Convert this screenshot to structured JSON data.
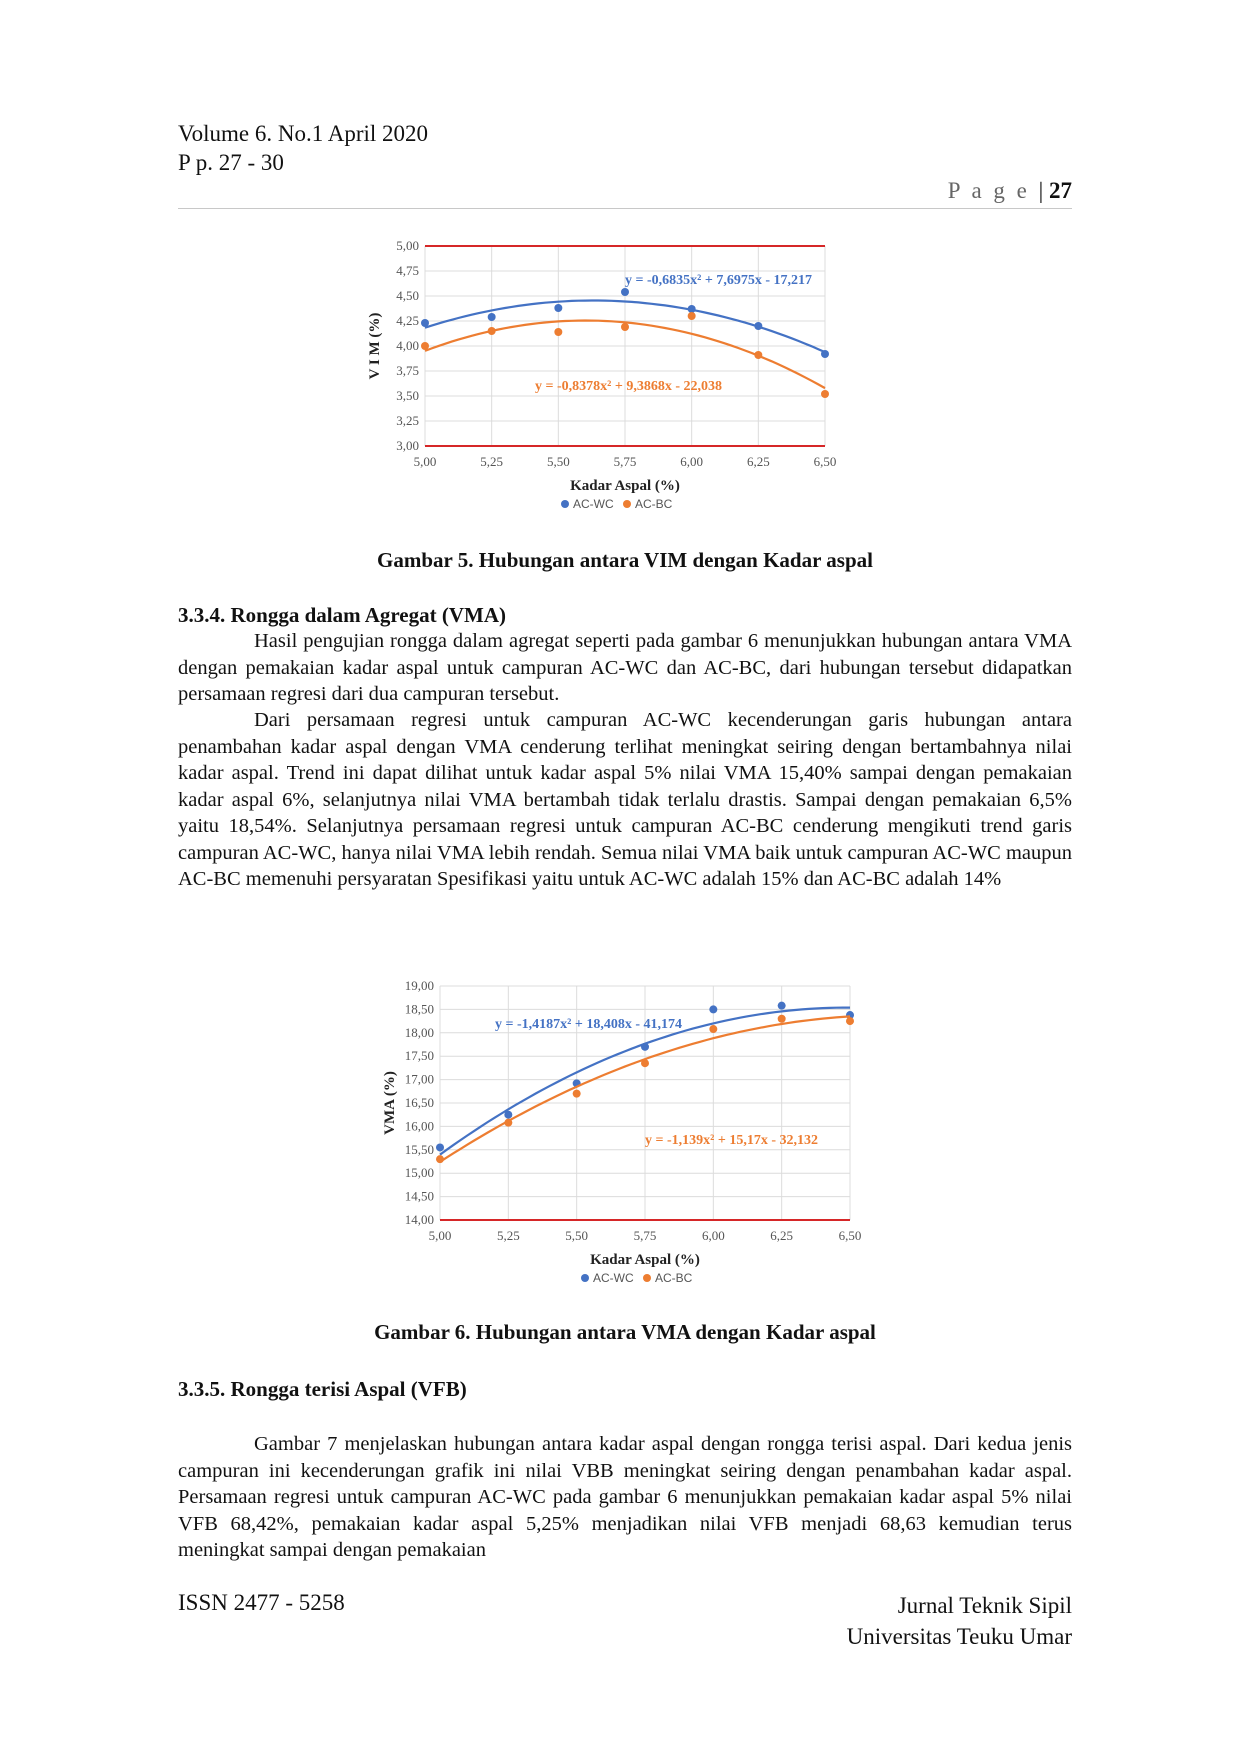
{
  "header": {
    "volume": "Volume 6. No.1 April 2020",
    "pages": "P p. 27 - 30",
    "page_label": "P a g e",
    "page_number": "27"
  },
  "figure5": {
    "caption": "Gambar 5. Hubungan antara VIM dengan Kadar aspal"
  },
  "section_334": {
    "heading": "3.3.4.  Rongga dalam Agregat (VMA)",
    "para1": "Hasil pengujian rongga dalam agregat seperti pada gambar 6 menunjukkan hubungan antara VMA dengan pemakaian kadar aspal untuk campuran AC-WC dan AC-BC, dari hubungan tersebut didapatkan persamaan regresi dari dua campuran tersebut.",
    "para2": "Dari persamaan regresi untuk campuran AC-WC kecenderungan garis hubungan antara penambahan kadar aspal dengan VMA cenderung terlihat meningkat seiring dengan bertambahnya nilai kadar aspal. Trend ini dapat dilihat untuk kadar aspal 5% nilai VMA 15,40% sampai dengan pemakaian kadar aspal 6%, selanjutnya nilai VMA bertambah tidak terlalu drastis. Sampai dengan pemakaian 6,5% yaitu  18,54%. Selanjutnya persamaan regresi untuk campuran AC-BC cenderung mengikuti trend garis campuran AC-WC, hanya nilai VMA lebih rendah. Semua nilai VMA baik untuk campuran AC-WC maupun AC-BC memenuhi persyaratan Spesifikasi yaitu untuk AC-WC adalah 15% dan AC-BC adalah 14%"
  },
  "figure6": {
    "caption": "Gambar 6. Hubungan antara VMA dengan Kadar aspal"
  },
  "section_335": {
    "heading": "3.3.5.  Rongga terisi Aspal (VFB)",
    "para1": "Gambar 7 menjelaskan hubungan antara kadar aspal dengan rongga terisi aspal. Dari kedua jenis campuran ini kecenderungan grafik ini nilai VBB meningkat seiring dengan penambahan kadar aspal. Persamaan regresi untuk campuran AC-WC pada gambar 6 menunjukkan pemakaian kadar aspal 5% nilai VFB 68,42%, pemakaian kadar aspal 5,25% menjadikan nilai VFB menjadi 68,63 kemudian terus meningkat sampai dengan pemakaian"
  },
  "footer": {
    "issn": "ISSN 2477 - 5258",
    "journal": "Jurnal Teknik Sipil",
    "university": "Universitas Teuku Umar"
  },
  "chart_data": [
    {
      "type": "scatter",
      "xlabel": "Kadar Aspal (%)",
      "ylabel": "V I M (%)",
      "xlim": [
        5.0,
        6.5
      ],
      "ylim": [
        3.0,
        5.0
      ],
      "x_ticks": [
        "5,00",
        "5,25",
        "5,50",
        "5,75",
        "6,00",
        "6,25",
        "6,50"
      ],
      "y_ticks": [
        "3,00",
        "3,25",
        "3,50",
        "3,75",
        "4,00",
        "4,25",
        "4,50",
        "4,75",
        "5,00"
      ],
      "limit_lines": [
        3.0,
        5.0
      ],
      "limit_color": "#d62728",
      "legend_position": "bottom",
      "series": [
        {
          "name": "AC-WC",
          "color": "#4472c4",
          "x": [
            5.0,
            5.25,
            5.5,
            5.75,
            6.0,
            6.25,
            6.5
          ],
          "y": [
            4.23,
            4.29,
            4.38,
            4.54,
            4.37,
            4.2,
            3.92
          ],
          "trend": {
            "a": -0.6835,
            "b": 7.6975,
            "c": -17.217
          },
          "equation": "y = -0,6835x² + 7,6975x - 17,217"
        },
        {
          "name": "AC-BC",
          "color": "#ed7d31",
          "x": [
            5.0,
            5.25,
            5.5,
            5.75,
            6.0,
            6.25,
            6.5
          ],
          "y": [
            4.0,
            4.15,
            4.14,
            4.19,
            4.3,
            3.91,
            3.52
          ],
          "trend": {
            "a": -0.8378,
            "b": 9.3868,
            "c": -22.038
          },
          "equation": "y = -0,8378x² + 9,3868x - 22,038"
        }
      ]
    },
    {
      "type": "scatter",
      "xlabel": "Kadar Aspal (%)",
      "ylabel": "VMA (%)",
      "xlim": [
        5.0,
        6.5
      ],
      "ylim": [
        14.0,
        19.0
      ],
      "x_ticks": [
        "5,00",
        "5,25",
        "5,50",
        "5,75",
        "6,00",
        "6,25",
        "6,50"
      ],
      "y_ticks": [
        "14,00",
        "14,50",
        "15,00",
        "15,50",
        "16,00",
        "16,50",
        "17,00",
        "17,50",
        "18,00",
        "18,50",
        "19,00"
      ],
      "limit_lines": [
        14.0
      ],
      "limit_color": "#d62728",
      "legend_position": "bottom",
      "series": [
        {
          "name": "AC-WC",
          "color": "#4472c4",
          "x": [
            5.0,
            5.25,
            5.5,
            5.75,
            6.0,
            6.25,
            6.5
          ],
          "y": [
            15.55,
            16.25,
            16.92,
            17.7,
            18.5,
            18.58,
            18.38
          ],
          "trend": {
            "a": -1.4187,
            "b": 18.408,
            "c": -41.174
          },
          "equation": "y = -1,4187x² + 18,408x - 41,174"
        },
        {
          "name": "AC-BC",
          "color": "#ed7d31",
          "x": [
            5.0,
            5.25,
            5.5,
            5.75,
            6.0,
            6.25,
            6.5
          ],
          "y": [
            15.3,
            16.08,
            16.7,
            17.35,
            18.08,
            18.3,
            18.25
          ],
          "trend": {
            "a": -1.139,
            "b": 15.17,
            "c": -32.132
          },
          "equation": "y = -1,139x² + 15,17x - 32,132"
        }
      ]
    }
  ]
}
